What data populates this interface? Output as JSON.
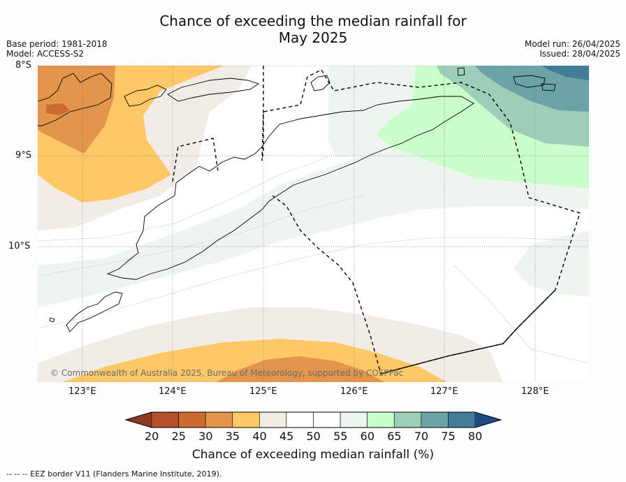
{
  "title_line1": "Chance of exceeding the median rainfall for",
  "title_line2": "May 2025",
  "meta_left": {
    "base_period": "Base period: 1981-2018",
    "model": "Model: ACCESS-S2"
  },
  "meta_right": {
    "model_run": "Model run: 26/04/2025",
    "issued": "Issued: 28/04/2025"
  },
  "lat_labels": [
    "8°S",
    "9°S",
    "10°S"
  ],
  "lon_labels": [
    "123°E",
    "124°E",
    "125°E",
    "126°E",
    "127°E",
    "128°E"
  ],
  "copyright": "© Commonwealth of Australia 2025, Bureau of Meteorology, supported by COSPPac",
  "colorbar": {
    "ticks": [
      "20",
      "25",
      "30",
      "35",
      "40",
      "45",
      "50",
      "55",
      "60",
      "65",
      "70",
      "75",
      "80"
    ],
    "label": "Chance of exceeding median rainfall (%)",
    "under_color": "#8b3a22",
    "colors": [
      "#b4512a",
      "#cd6c30",
      "#e3964b",
      "#fdc865",
      "#f1ece6",
      "#ffffff",
      "#ffffff",
      "#edf5ee",
      "#c9fdc9",
      "#9dcfb8",
      "#6ba3a7",
      "#427c99"
    ],
    "over_color": "#1e4a86"
  },
  "footer": "-- -- -- EEZ border V11 (Flanders Marine Institute, 2019)."
}
